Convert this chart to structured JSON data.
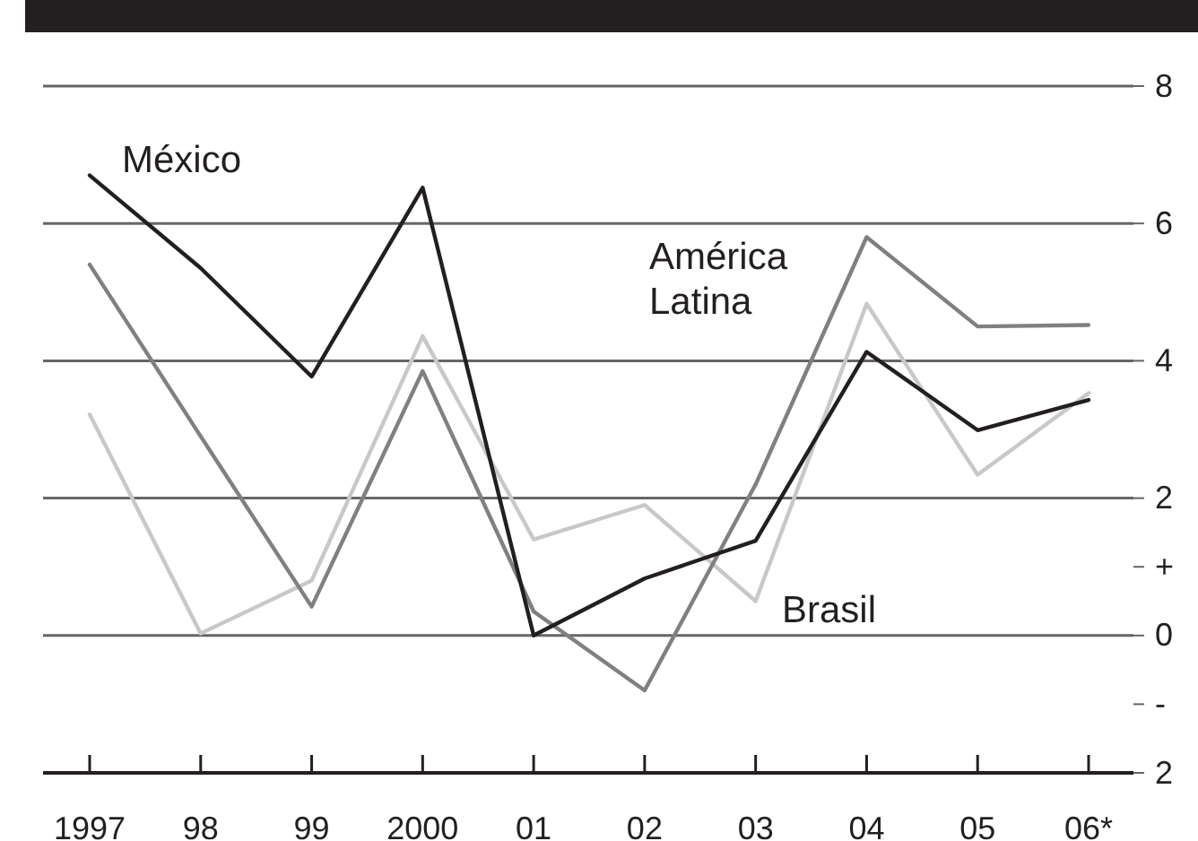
{
  "chart_data": {
    "type": "line",
    "categories": [
      "1997",
      "98",
      "99",
      "2000",
      "01",
      "02",
      "03",
      "04",
      "05",
      "06*"
    ],
    "series": [
      {
        "name": "México",
        "color": "#231f20",
        "values": [
          6.7,
          5.35,
          3.77,
          6.52,
          0.0,
          0.83,
          1.38,
          4.13,
          2.99,
          3.43
        ]
      },
      {
        "name": "América Latina",
        "color": "#808080",
        "values": [
          5.4,
          2.9,
          0.42,
          3.85,
          0.35,
          -0.8,
          2.2,
          5.8,
          4.5,
          4.52
        ]
      },
      {
        "name": "Brasil",
        "color": "#c8c8c8",
        "values": [
          3.22,
          0.03,
          0.8,
          4.36,
          1.4,
          1.9,
          0.5,
          4.83,
          2.34,
          3.53
        ]
      }
    ],
    "ylim": [
      -2,
      8
    ],
    "yticks": [
      {
        "value": -2,
        "label": "2"
      },
      {
        "value": -1,
        "label": "-"
      },
      0,
      {
        "value": 1,
        "label": "+"
      },
      2,
      4,
      6,
      8
    ],
    "grid": "y",
    "legend": false,
    "marker": "none",
    "line_style": "solid"
  }
}
